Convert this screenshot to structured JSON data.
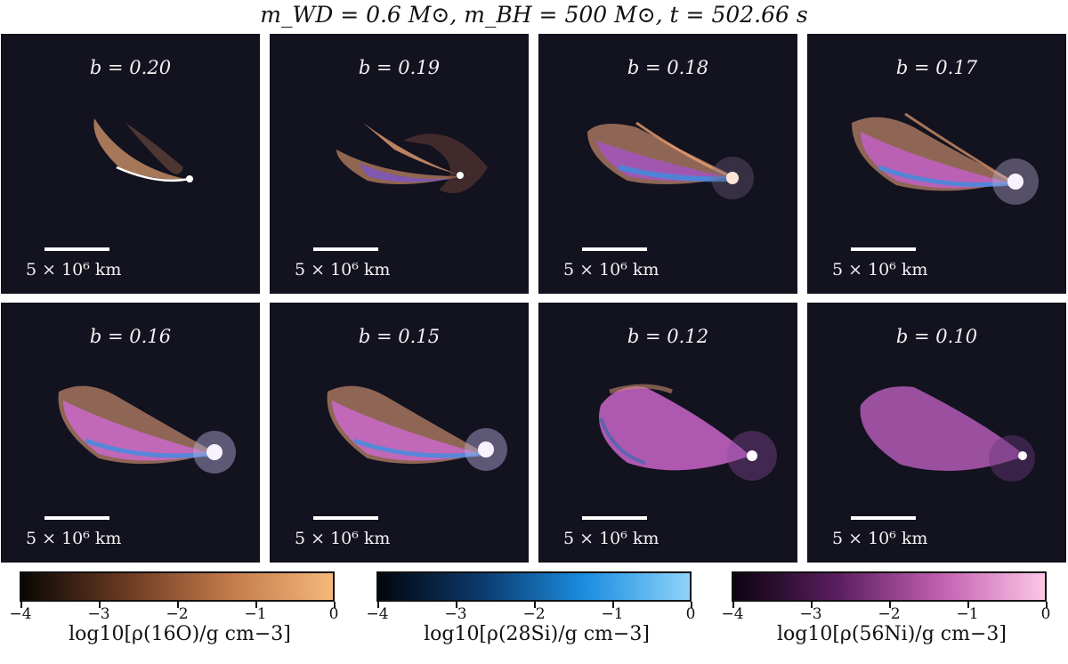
{
  "title": "m_WD = 0.6 M⊙, m_BH = 500 M⊙, t = 502.66 s",
  "panels": [
    {
      "label": "b = 0.20",
      "scale_label": "5 × 10⁶ km"
    },
    {
      "label": "b = 0.19",
      "scale_label": "5 × 10⁶ km"
    },
    {
      "label": "b = 0.18",
      "scale_label": "5 × 10⁶ km"
    },
    {
      "label": "b = 0.17",
      "scale_label": "5 × 10⁶ km"
    },
    {
      "label": "b = 0.16",
      "scale_label": "5 × 10⁶ km"
    },
    {
      "label": "b = 0.15",
      "scale_label": "5 × 10⁶ km"
    },
    {
      "label": "b = 0.12",
      "scale_label": "5 × 10⁶ km"
    },
    {
      "label": "b = 0.10",
      "scale_label": "5 × 10⁶ km"
    }
  ],
  "colorbars": [
    {
      "label": "log10[ρ(16O)/g cm−3]",
      "ticks": [
        "−4",
        "−3",
        "−2",
        "−1",
        "0"
      ],
      "colors": [
        "#0a0604",
        "#6b3a22",
        "#c27a4a",
        "#f5b87a"
      ]
    },
    {
      "label": "log10[ρ(28Si)/g cm−3]",
      "ticks": [
        "−4",
        "−3",
        "−2",
        "−1",
        "0"
      ],
      "colors": [
        "#03060d",
        "#0c3a6e",
        "#1c8ee0",
        "#8fd4fa"
      ]
    },
    {
      "label": "log10[ρ(56Ni)/g cm−3]",
      "ticks": [
        "−4",
        "−3",
        "−2",
        "−1",
        "0"
      ],
      "colors": [
        "#0c0310",
        "#5a1e5e",
        "#c260b0",
        "#fcc7e6"
      ]
    }
  ],
  "colors": {
    "panel_bg": "#13121f",
    "oxygen": "#e8a070",
    "silicon": "#3b8fe0",
    "nickel": "#d070c8"
  }
}
